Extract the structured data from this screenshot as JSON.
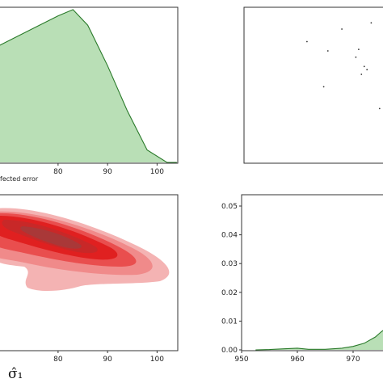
{
  "chart_data": [
    {
      "type": "area",
      "panel": "top-left",
      "xlabel_fragment": "fected error",
      "xticks": [
        80,
        90,
        100
      ],
      "xlim": [
        65,
        105
      ],
      "ylim": [
        0,
        1
      ],
      "fill_color": "#b9dfb6",
      "line_color": "#2a7a2a",
      "x": [
        65,
        70,
        75,
        80,
        83,
        86,
        90,
        94,
        98,
        102,
        104
      ],
      "y": [
        0.7,
        0.78,
        0.86,
        0.94,
        0.98,
        0.88,
        0.62,
        0.33,
        0.08,
        0.0,
        0.0
      ]
    },
    {
      "type": "scatter",
      "panel": "top-right",
      "marker_color": "#333333",
      "points": [
        {
          "x": 0.45,
          "y": 0.78
        },
        {
          "x": 0.7,
          "y": 0.86
        },
        {
          "x": 0.6,
          "y": 0.72
        },
        {
          "x": 0.8,
          "y": 0.68
        },
        {
          "x": 0.82,
          "y": 0.73
        },
        {
          "x": 0.86,
          "y": 0.62
        },
        {
          "x": 0.88,
          "y": 0.6
        },
        {
          "x": 0.84,
          "y": 0.57
        },
        {
          "x": 0.57,
          "y": 0.49
        },
        {
          "x": 0.97,
          "y": 0.35
        },
        {
          "x": 0.91,
          "y": 0.9
        }
      ]
    },
    {
      "type": "heatmap",
      "subtype": "kde-contour",
      "panel": "bottom-left",
      "xlabel": "σ̂₁",
      "xticks": [
        80,
        90,
        100
      ],
      "xlim": [
        65,
        105
      ],
      "colors": [
        "#f4b3b3",
        "#f08a8a",
        "#e94e4e",
        "#e02020",
        "#c82828",
        "#a93838"
      ]
    },
    {
      "type": "area",
      "panel": "bottom-right",
      "xticks": [
        950,
        960,
        970
      ],
      "yticks": [
        "0.00",
        "0.01",
        "0.02",
        "0.03",
        "0.04",
        "0.05"
      ],
      "xlim": [
        950,
        977
      ],
      "ylim": [
        0,
        0.053
      ],
      "fill_color": "#b9dfb6",
      "line_color": "#2a7a2a",
      "x": [
        952.5,
        955,
        958,
        960,
        962,
        965,
        968,
        970,
        972,
        974,
        975,
        976,
        977
      ],
      "y": [
        0,
        0.0001,
        0.0004,
        0.0006,
        0.0002,
        0.0002,
        0.0006,
        0.0012,
        0.0023,
        0.0045,
        0.0062,
        0.0076,
        0.0082
      ]
    }
  ]
}
